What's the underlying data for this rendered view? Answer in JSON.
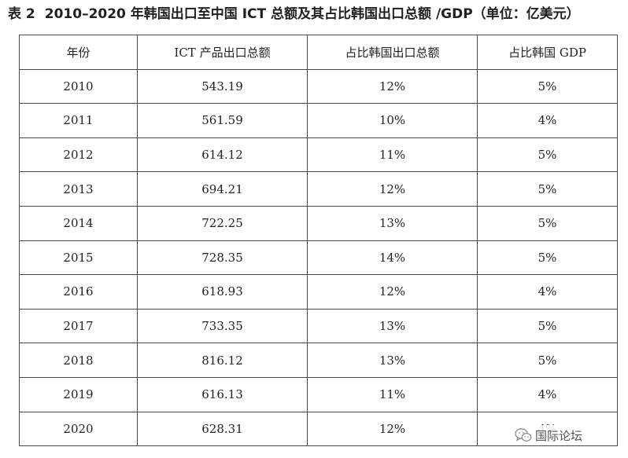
{
  "caption": {
    "label": "表 2",
    "title": "2010–2020 年韩国出口至中国 ICT 总额及其占比韩国出口总额 /GDP（单位：亿美元）"
  },
  "table": {
    "headers": [
      "年份",
      "ICT 产品出口总额",
      "占比韩国出口总额",
      "占比韩国 GDP"
    ],
    "rows": [
      [
        "2010",
        "543.19",
        "12%",
        "5%"
      ],
      [
        "2011",
        "561.59",
        "10%",
        "4%"
      ],
      [
        "2012",
        "614.12",
        "11%",
        "5%"
      ],
      [
        "2013",
        "694.21",
        "12%",
        "5%"
      ],
      [
        "2014",
        "722.25",
        "13%",
        "5%"
      ],
      [
        "2015",
        "728.35",
        "14%",
        "5%"
      ],
      [
        "2016",
        "618.93",
        "12%",
        "4%"
      ],
      [
        "2017",
        "733.35",
        "13%",
        "5%"
      ],
      [
        "2018",
        "816.12",
        "13%",
        "5%"
      ],
      [
        "2019",
        "616.13",
        "11%",
        "4%"
      ],
      [
        "2020",
        "628.31",
        "12%",
        "4%"
      ]
    ]
  },
  "watermark": {
    "icon": "wechat-icon",
    "text": "国际论坛"
  }
}
